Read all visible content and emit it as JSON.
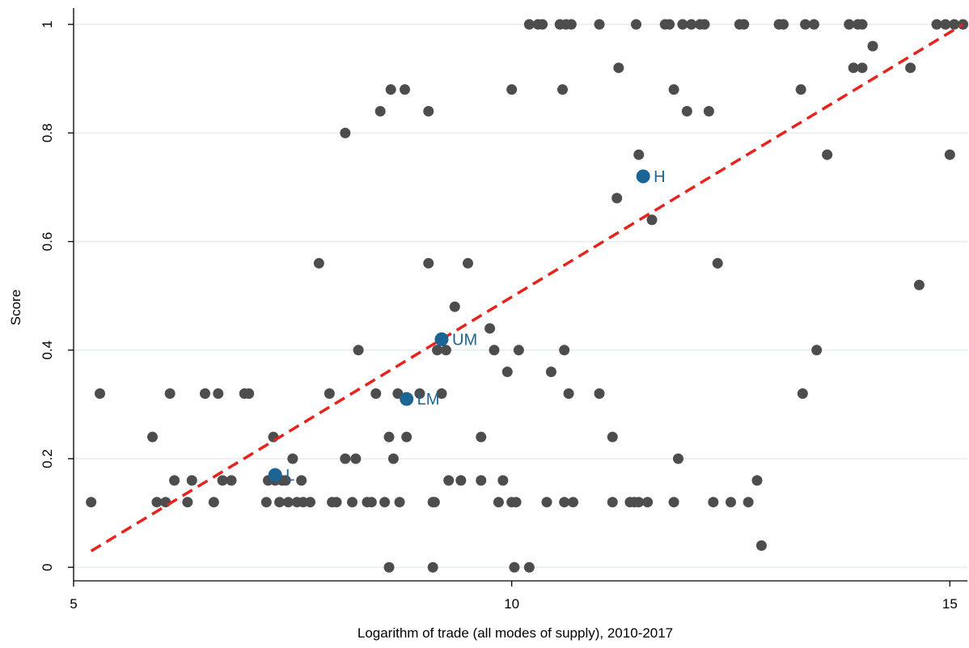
{
  "chart_data": {
    "type": "scatter",
    "title": "",
    "xlabel": "Logarithm of trade (all modes of supply), 2010-2017",
    "ylabel": "Score",
    "xlim": [
      5,
      15.2
    ],
    "ylim": [
      -0.025,
      1.03
    ],
    "xticks": [
      5,
      10,
      15
    ],
    "xtick_labels": [
      "5",
      "10",
      "15"
    ],
    "yticks": [
      0,
      0.2,
      0.4,
      0.6,
      0.8,
      1
    ],
    "ytick_labels": [
      "0",
      "0.2",
      "0.4",
      "0.6",
      "0.8",
      "1"
    ],
    "grid": "horizontal",
    "legend": "none",
    "colors": {
      "points": "#4d4d4d",
      "groups": "#1a6496",
      "fit": "#e8221c",
      "grid": "#e3ecef"
    },
    "fit_line": {
      "x": [
        5.2,
        15.15
      ],
      "y": [
        0.03,
        1.0
      ],
      "style": "dashed"
    },
    "group_points": [
      {
        "label": "L",
        "x": 7.3,
        "y": 0.17
      },
      {
        "label": "LM",
        "x": 8.8,
        "y": 0.31
      },
      {
        "label": "UM",
        "x": 9.2,
        "y": 0.42
      },
      {
        "label": "H",
        "x": 11.5,
        "y": 0.72
      }
    ],
    "points": [
      [
        5.2,
        0.12
      ],
      [
        5.3,
        0.32
      ],
      [
        5.9,
        0.24
      ],
      [
        5.95,
        0.12
      ],
      [
        6.05,
        0.12
      ],
      [
        6.1,
        0.32
      ],
      [
        6.15,
        0.16
      ],
      [
        6.3,
        0.12
      ],
      [
        6.35,
        0.16
      ],
      [
        6.5,
        0.32
      ],
      [
        6.6,
        0.12
      ],
      [
        6.65,
        0.32
      ],
      [
        6.7,
        0.16
      ],
      [
        6.8,
        0.16
      ],
      [
        6.95,
        0.32
      ],
      [
        7.0,
        0.32
      ],
      [
        7.2,
        0.12
      ],
      [
        7.22,
        0.16
      ],
      [
        7.28,
        0.24
      ],
      [
        7.3,
        0.16
      ],
      [
        7.35,
        0.12
      ],
      [
        7.38,
        0.16
      ],
      [
        7.42,
        0.16
      ],
      [
        7.45,
        0.12
      ],
      [
        7.5,
        0.2
      ],
      [
        7.55,
        0.12
      ],
      [
        7.6,
        0.16
      ],
      [
        7.62,
        0.12
      ],
      [
        7.7,
        0.12
      ],
      [
        7.8,
        0.56
      ],
      [
        7.92,
        0.32
      ],
      [
        7.95,
        0.12
      ],
      [
        8.0,
        0.12
      ],
      [
        8.1,
        0.8
      ],
      [
        8.1,
        0.2
      ],
      [
        8.18,
        0.12
      ],
      [
        8.22,
        0.2
      ],
      [
        8.25,
        0.4
      ],
      [
        8.35,
        0.12
      ],
      [
        8.4,
        0.12
      ],
      [
        8.45,
        0.32
      ],
      [
        8.5,
        0.84
      ],
      [
        8.55,
        0.12
      ],
      [
        8.6,
        0.24
      ],
      [
        8.6,
        0.0
      ],
      [
        8.62,
        0.88
      ],
      [
        8.65,
        0.2
      ],
      [
        8.7,
        0.32
      ],
      [
        8.72,
        0.12
      ],
      [
        8.78,
        0.88
      ],
      [
        8.8,
        0.24
      ],
      [
        8.95,
        0.32
      ],
      [
        9.05,
        0.84
      ],
      [
        9.05,
        0.56
      ],
      [
        9.1,
        0.12
      ],
      [
        9.12,
        0.12
      ],
      [
        9.15,
        0.4
      ],
      [
        9.1,
        0.0
      ],
      [
        9.2,
        0.32
      ],
      [
        9.25,
        0.4
      ],
      [
        9.28,
        0.16
      ],
      [
        9.35,
        0.48
      ],
      [
        9.42,
        0.16
      ],
      [
        9.5,
        0.56
      ],
      [
        9.65,
        0.24
      ],
      [
        9.65,
        0.16
      ],
      [
        9.75,
        0.44
      ],
      [
        9.8,
        0.4
      ],
      [
        9.85,
        0.12
      ],
      [
        9.9,
        0.16
      ],
      [
        9.95,
        0.36
      ],
      [
        10.0,
        0.88
      ],
      [
        10.0,
        0.12
      ],
      [
        10.03,
        0.0
      ],
      [
        10.05,
        0.12
      ],
      [
        10.08,
        0.4
      ],
      [
        10.2,
        0.0
      ],
      [
        10.2,
        1.0
      ],
      [
        10.3,
        1.0
      ],
      [
        10.35,
        1.0
      ],
      [
        10.4,
        0.12
      ],
      [
        10.45,
        0.36
      ],
      [
        10.55,
        1.0
      ],
      [
        10.58,
        0.88
      ],
      [
        10.6,
        0.12
      ],
      [
        10.6,
        0.4
      ],
      [
        10.62,
        1.0
      ],
      [
        10.65,
        0.32
      ],
      [
        10.68,
        1.0
      ],
      [
        10.7,
        0.12
      ],
      [
        11.0,
        1.0
      ],
      [
        11.0,
        0.32
      ],
      [
        11.15,
        0.24
      ],
      [
        11.15,
        0.12
      ],
      [
        11.2,
        0.68
      ],
      [
        11.22,
        0.92
      ],
      [
        11.35,
        0.12
      ],
      [
        11.4,
        0.12
      ],
      [
        11.42,
        1.0
      ],
      [
        11.45,
        0.76
      ],
      [
        11.45,
        0.12
      ],
      [
        11.55,
        0.12
      ],
      [
        11.6,
        0.64
      ],
      [
        11.75,
        1.0
      ],
      [
        11.8,
        1.0
      ],
      [
        11.85,
        0.88
      ],
      [
        11.85,
        0.12
      ],
      [
        11.9,
        0.2
      ],
      [
        11.95,
        1.0
      ],
      [
        12.0,
        0.84
      ],
      [
        12.05,
        1.0
      ],
      [
        12.15,
        1.0
      ],
      [
        12.2,
        1.0
      ],
      [
        12.25,
        0.84
      ],
      [
        12.3,
        0.12
      ],
      [
        12.35,
        0.56
      ],
      [
        12.5,
        0.12
      ],
      [
        12.6,
        1.0
      ],
      [
        12.65,
        1.0
      ],
      [
        12.7,
        0.12
      ],
      [
        12.8,
        0.16
      ],
      [
        12.85,
        0.04
      ],
      [
        13.05,
        1.0
      ],
      [
        13.1,
        1.0
      ],
      [
        13.3,
        0.88
      ],
      [
        13.32,
        0.32
      ],
      [
        13.35,
        1.0
      ],
      [
        13.45,
        1.0
      ],
      [
        13.48,
        0.4
      ],
      [
        13.6,
        0.76
      ],
      [
        13.85,
        1.0
      ],
      [
        13.9,
        0.92
      ],
      [
        13.95,
        1.0
      ],
      [
        14.0,
        0.92
      ],
      [
        14.0,
        1.0
      ],
      [
        14.12,
        0.96
      ],
      [
        14.55,
        0.92
      ],
      [
        14.65,
        0.52
      ],
      [
        14.85,
        1.0
      ],
      [
        14.95,
        1.0
      ],
      [
        15.0,
        0.76
      ],
      [
        15.05,
        1.0
      ],
      [
        15.15,
        1.0
      ]
    ]
  }
}
